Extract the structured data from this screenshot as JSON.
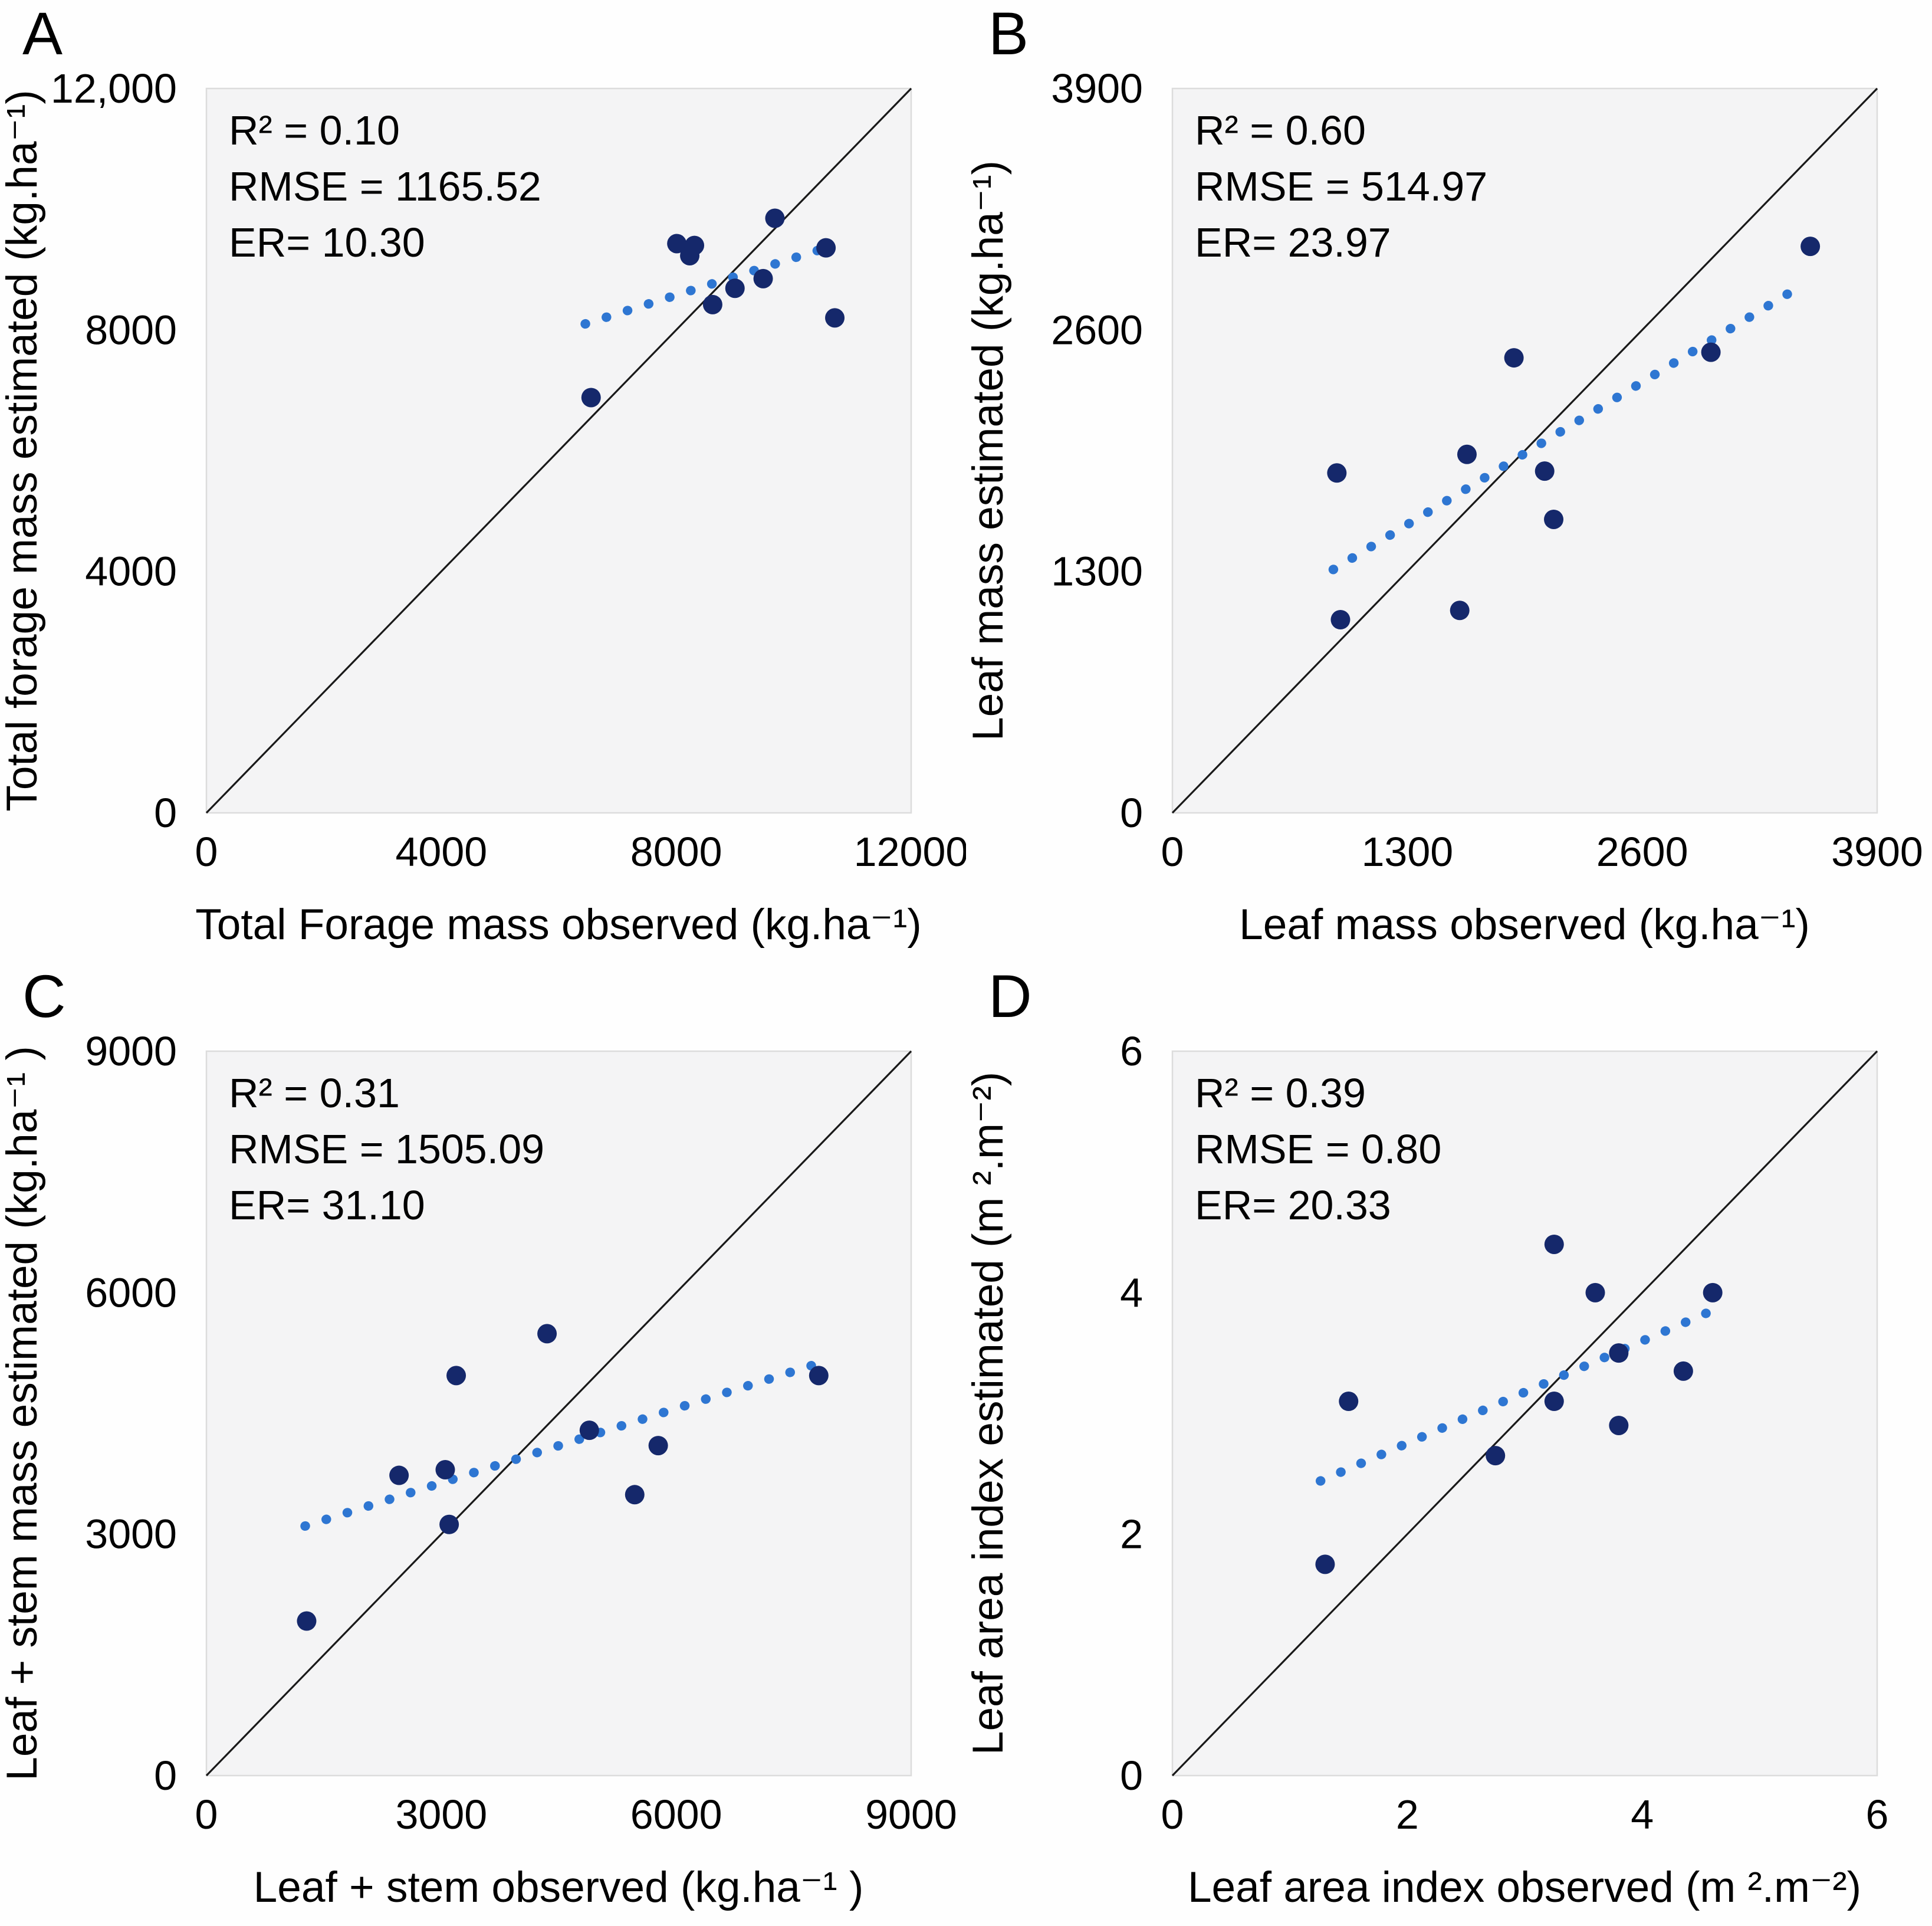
{
  "style": {
    "page_bg": "#fefefe",
    "plot_bg": "#f4f4f5",
    "plot_border": "#dcdcdc",
    "identity_color": "#191919",
    "trend_color": "#2e76d2",
    "point_color": "#15286b",
    "text_color": "#000000"
  },
  "chart_data": [
    {
      "type": "scatter",
      "panel_label": "A",
      "xlabel": "Total Forage mass observed (kg.ha⁻¹)",
      "ylabel": "Total forage mass estimated (kg.ha⁻¹)",
      "xlim": [
        0,
        12000
      ],
      "ylim": [
        0,
        12000
      ],
      "xticks": [
        0,
        4000,
        8000,
        12000
      ],
      "xtick_labels": [
        "0",
        "4000",
        "8000",
        "12000"
      ],
      "yticks": [
        0,
        4000,
        8000,
        12000
      ],
      "ytick_labels": [
        "0",
        "4000",
        "8000",
        "12,000"
      ],
      "annotations": [
        "R² = 0.10",
        "RMSE = 1165.52",
        "ER= 10.30"
      ],
      "points": [
        [
          6550,
          6880
        ],
        [
          8010,
          9430
        ],
        [
          8230,
          9230
        ],
        [
          8310,
          9400
        ],
        [
          8620,
          8420
        ],
        [
          9000,
          8690
        ],
        [
          9480,
          8850
        ],
        [
          9680,
          9850
        ],
        [
          10550,
          9360
        ],
        [
          10700,
          8200
        ]
      ],
      "identity_line": {
        "x": [
          0,
          12000
        ],
        "y": [
          0,
          12000
        ]
      },
      "trend_line": {
        "style": "dotted",
        "x": [
          6450,
          10550
        ],
        "y": [
          8100,
          9360
        ]
      },
      "grid": "off",
      "legend": "none"
    },
    {
      "type": "scatter",
      "panel_label": "B",
      "xlabel": "Leaf mass observed (kg.ha⁻¹)",
      "ylabel": "Leaf mass estimated (kg.ha⁻¹)",
      "xlim": [
        0,
        3900
      ],
      "ylim": [
        0,
        3900
      ],
      "xticks": [
        0,
        1300,
        2600,
        3900
      ],
      "xtick_labels": [
        "0",
        "1300",
        "2600",
        "3900"
      ],
      "yticks": [
        0,
        1300,
        2600,
        3900
      ],
      "ytick_labels": [
        "0",
        "1300",
        "2600",
        "3900"
      ],
      "annotations": [
        "R² = 0.60",
        "RMSE = 514.97",
        "ER= 23.97"
      ],
      "points": [
        [
          910,
          1830
        ],
        [
          930,
          1040
        ],
        [
          1590,
          1090
        ],
        [
          1630,
          1930
        ],
        [
          1890,
          2450
        ],
        [
          2060,
          1840
        ],
        [
          2110,
          1580
        ],
        [
          2980,
          2480
        ],
        [
          3530,
          3050
        ]
      ],
      "identity_line": {
        "x": [
          0,
          3900
        ],
        "y": [
          0,
          3900
        ]
      },
      "trend_line": {
        "style": "dotted",
        "x": [
          890,
          3500
        ],
        "y": [
          1310,
          2850
        ]
      },
      "grid": "off",
      "legend": "none"
    },
    {
      "type": "scatter",
      "panel_label": "C",
      "xlabel": "Leaf + stem observed (kg.ha⁻¹ )",
      "ylabel": "Leaf + stem mass estimated (kg.ha⁻¹ )",
      "xlim": [
        0,
        9000
      ],
      "ylim": [
        0,
        9000
      ],
      "xticks": [
        0,
        3000,
        6000,
        9000
      ],
      "xtick_labels": [
        "0",
        "3000",
        "6000",
        "9000"
      ],
      "yticks": [
        0,
        3000,
        6000,
        9000
      ],
      "ytick_labels": [
        "0",
        "3000",
        "6000",
        "9000"
      ],
      "annotations": [
        "R² = 0.31",
        "RMSE = 1505.09",
        "ER= 31.10"
      ],
      "points": [
        [
          1280,
          1920
        ],
        [
          2460,
          3730
        ],
        [
          3050,
          3800
        ],
        [
          3100,
          3120
        ],
        [
          3190,
          4970
        ],
        [
          4350,
          5490
        ],
        [
          4890,
          4290
        ],
        [
          5470,
          3490
        ],
        [
          5770,
          4100
        ],
        [
          7820,
          4970
        ]
      ],
      "identity_line": {
        "x": [
          0,
          9000
        ],
        "y": [
          0,
          9000
        ]
      },
      "trend_line": {
        "style": "dotted",
        "x": [
          1260,
          7780
        ],
        "y": [
          3100,
          5110
        ]
      },
      "grid": "off",
      "legend": "none"
    },
    {
      "type": "scatter",
      "panel_label": "D",
      "xlabel": "Leaf area index observed (m ².m⁻²)",
      "ylabel": "Leaf area index estimated (m ².m⁻²)",
      "xlim": [
        0,
        6
      ],
      "ylim": [
        0,
        6
      ],
      "xticks": [
        0,
        2,
        4,
        6
      ],
      "xtick_labels": [
        "0",
        "2",
        "4",
        "6"
      ],
      "yticks": [
        0,
        2,
        4,
        6
      ],
      "ytick_labels": [
        "0",
        "2",
        "4",
        "6"
      ],
      "annotations": [
        "R² = 0.39",
        "RMSE = 0.80",
        "ER= 20.33"
      ],
      "points": [
        [
          1.3,
          1.75
        ],
        [
          1.5,
          3.1
        ],
        [
          2.75,
          2.65
        ],
        [
          3.25,
          4.4
        ],
        [
          3.25,
          3.1
        ],
        [
          3.6,
          4.0
        ],
        [
          3.8,
          3.5
        ],
        [
          3.8,
          2.9
        ],
        [
          4.35,
          3.35
        ],
        [
          4.6,
          4.0
        ]
      ],
      "identity_line": {
        "x": [
          0,
          6
        ],
        "y": [
          0,
          6
        ]
      },
      "trend_line": {
        "style": "dotted",
        "x": [
          1.26,
          4.57
        ],
        "y": [
          2.44,
          3.84
        ]
      },
      "grid": "off",
      "legend": "none"
    }
  ]
}
